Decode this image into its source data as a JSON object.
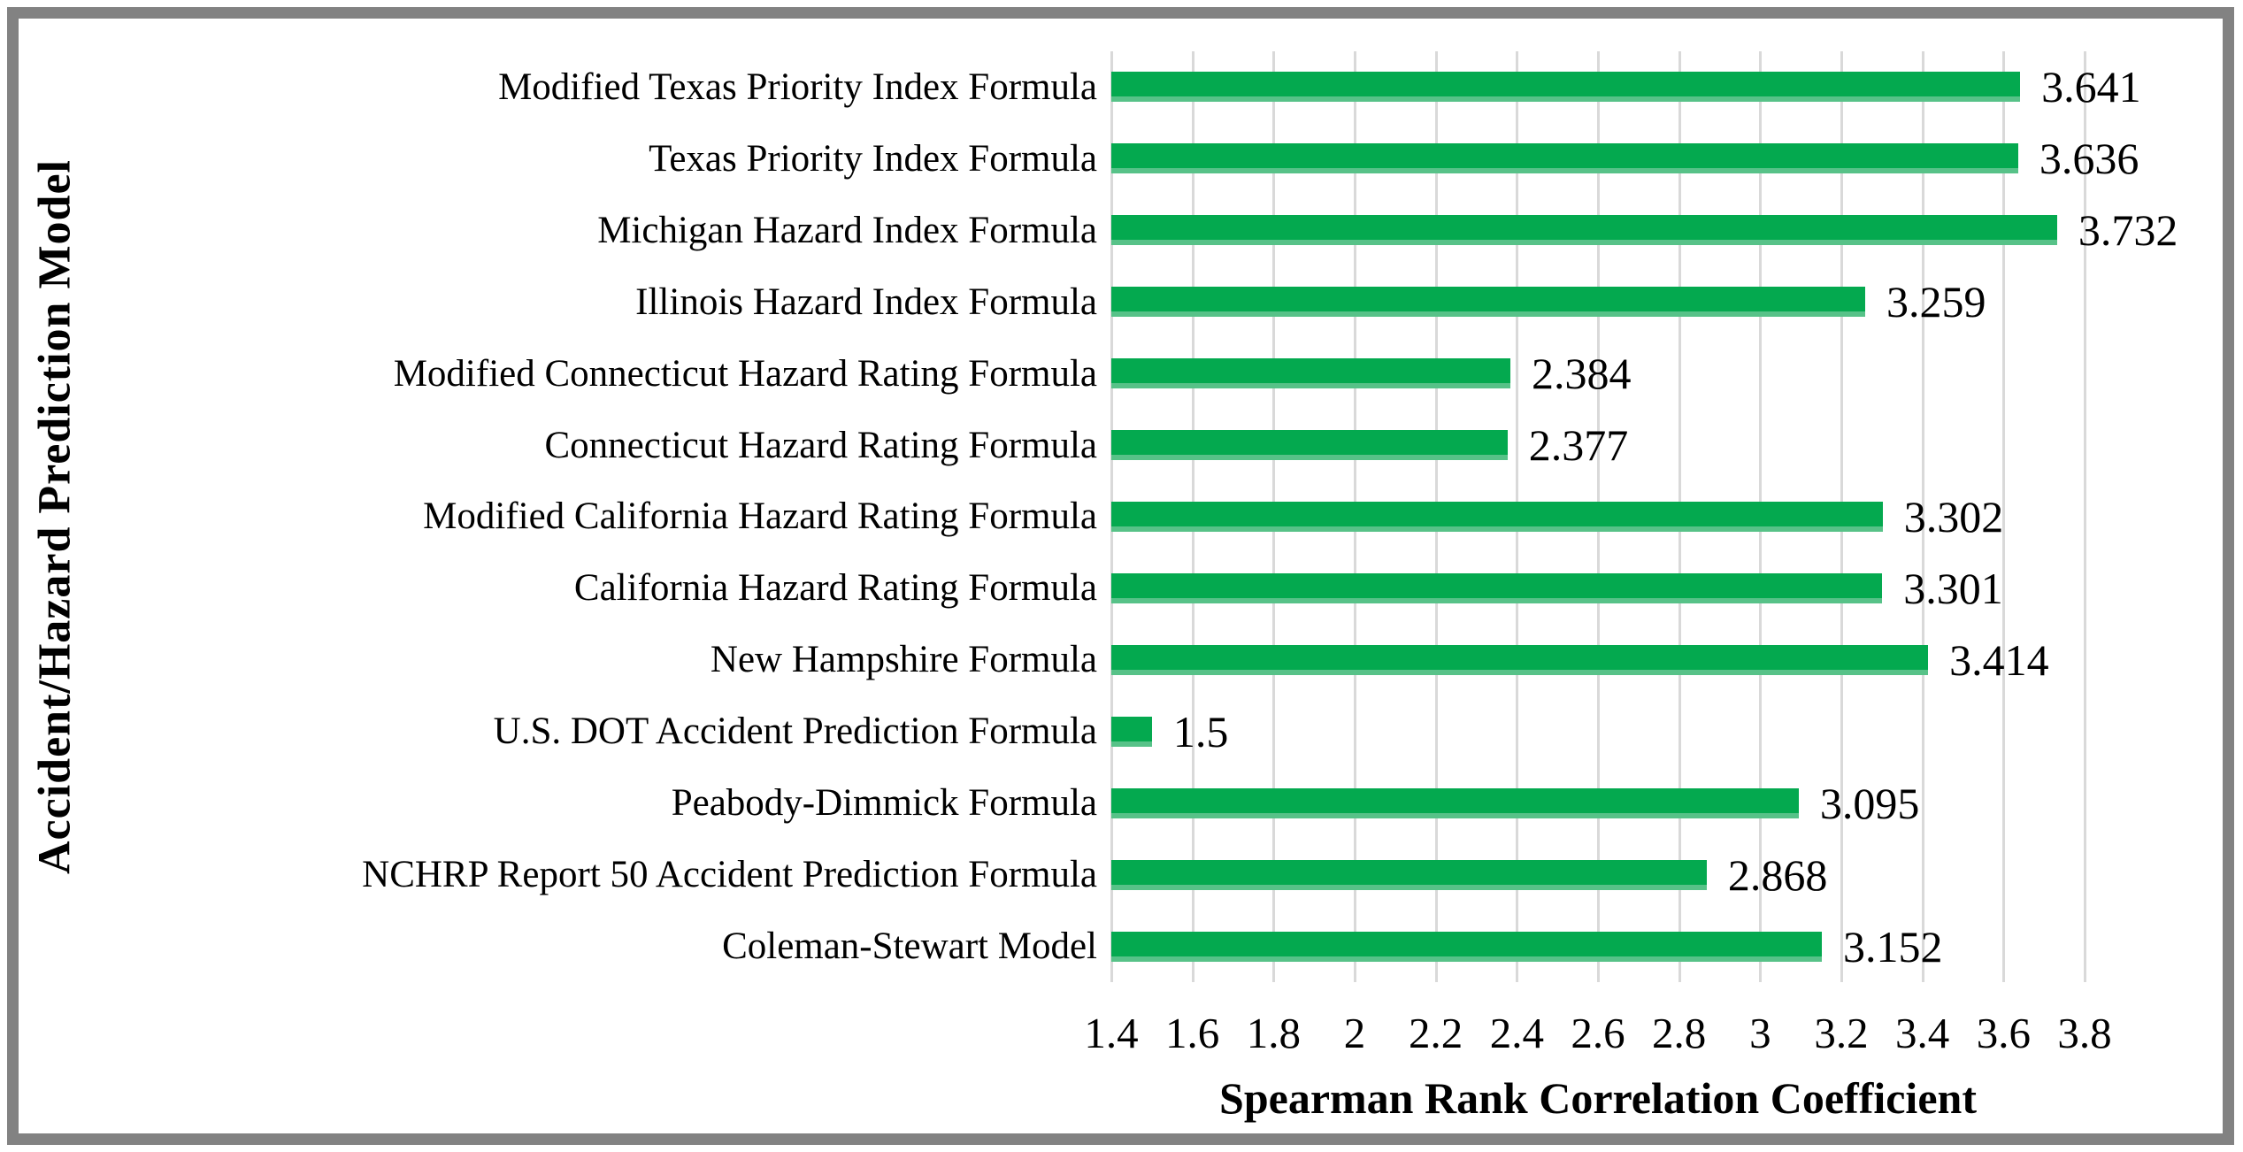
{
  "figure": {
    "background": "#ffffff",
    "border_color": "#828282"
  },
  "chart_data": {
    "type": "bar",
    "orientation": "horizontal",
    "title": "",
    "xlabel": "Spearman Rank Correlation Coefficient",
    "ylabel": "Accident/Hazard Prediction Model",
    "categories": [
      "Modified Texas Priority Index Formula",
      "Texas Priority Index Formula",
      "Michigan Hazard Index Formula",
      "Illinois Hazard Index Formula",
      "Modified Connecticut Hazard Rating Formula",
      "Connecticut Hazard Rating Formula",
      "Modified California Hazard Rating Formula",
      "California Hazard Rating Formula",
      "New Hampshire Formula",
      "U.S. DOT Accident Prediction Formula",
      "Peabody-Dimmick Formula",
      "NCHRP Report 50 Accident Prediction Formula",
      "Coleman-Stewart Model"
    ],
    "values": [
      3.641,
      3.636,
      3.732,
      3.259,
      2.384,
      2.377,
      3.302,
      3.301,
      3.414,
      1.5,
      3.095,
      2.868,
      3.152
    ],
    "value_labels": [
      "3.641",
      "3.636",
      "3.732",
      "3.259",
      "2.384",
      "2.377",
      "3.302",
      "3.301",
      "3.414",
      "1.5",
      "3.095",
      "2.868",
      "3.152"
    ],
    "xlim": [
      1.4,
      3.8
    ],
    "xticks": [
      1.4,
      1.6,
      1.8,
      2,
      2.2,
      2.4,
      2.6,
      2.8,
      3,
      3.2,
      3.4,
      3.6,
      3.8
    ],
    "xtick_labels": [
      "1.4",
      "1.6",
      "1.8",
      "2",
      "2.2",
      "2.4",
      "2.6",
      "2.8",
      "3",
      "3.2",
      "3.4",
      "3.6",
      "3.8"
    ],
    "grid": "vertical major gridlines on",
    "legend": "none",
    "bar_color": "#04a94f",
    "bar_edge_color": "#57c288",
    "gridline_color": "#d9d9d9"
  }
}
